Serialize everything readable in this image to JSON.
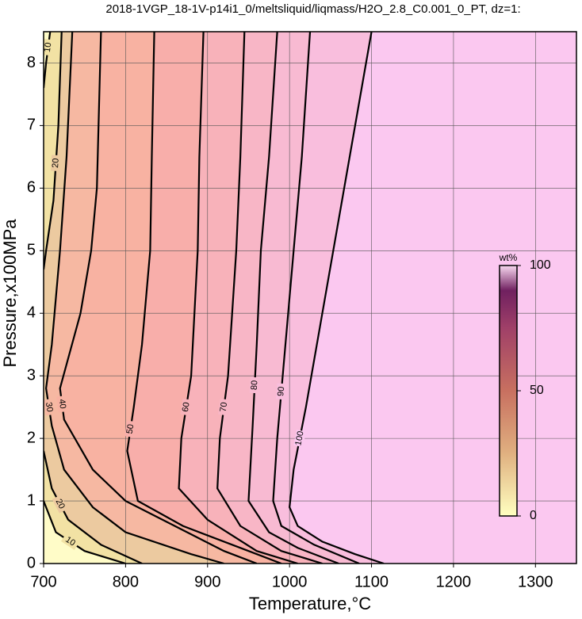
{
  "chart_data": {
    "type": "contour",
    "title": "2018-1VGP_18-1V-p14i1_0/meltsliquid/liqmass/H2O_2.8_C0.001_0_PT, dz=1:",
    "x_label": "Temperature,°C",
    "y_label": "Pressure,x100MPa",
    "xlim": [
      700,
      1350
    ],
    "ylim": [
      0,
      8.5
    ],
    "xticks": [
      700,
      800,
      900,
      1000,
      1100,
      1200,
      1300
    ],
    "yticks": [
      0,
      1,
      2,
      3,
      4,
      5,
      6,
      7,
      8
    ],
    "grid": true,
    "background": "#fffcc8",
    "series": [
      {
        "name": "10",
        "color": "#f2e2a4",
        "x": [
          708,
          703,
          700,
          null,
          700,
          715,
          750,
          800
        ],
        "y": [
          8.5,
          8,
          7.6,
          null,
          1.0,
          0.5,
          0.2,
          0
        ]
      },
      {
        "name": "20",
        "color": "#eccaa0",
        "x": [
          722,
          718,
          712,
          703,
          700,
          null,
          700,
          710,
          730,
          770,
          820
        ],
        "y": [
          8.5,
          7,
          5.8,
          5,
          4.7,
          null,
          1.8,
          1.2,
          0.7,
          0.3,
          0
        ]
      },
      {
        "name": "30",
        "color": "#f6b8a2",
        "x": [
          735,
          728,
          720,
          710,
          703,
          710,
          725,
          760,
          800,
          880,
          920
        ],
        "y": [
          8.5,
          6.5,
          5,
          3.5,
          2.8,
          2.2,
          1.5,
          0.9,
          0.5,
          0.15,
          0
        ]
      },
      {
        "name": "40",
        "color": "#f8b2a2",
        "x": [
          770,
          765,
          758,
          745,
          720,
          725,
          760,
          800,
          860,
          920,
          960
        ],
        "y": [
          8.5,
          6,
          5,
          4,
          2.8,
          2.3,
          1.5,
          1.0,
          0.6,
          0.2,
          0
        ]
      },
      {
        "name": "50",
        "color": "#f8aeaa",
        "x": [
          835,
          832,
          830,
          820,
          810,
          802,
          815,
          870,
          950,
          990
        ],
        "y": [
          8.5,
          6.5,
          5,
          3.5,
          2.5,
          1.8,
          1.0,
          0.6,
          0.2,
          0
        ]
      },
      {
        "name": "60",
        "color": "#f8b2ba",
        "x": [
          895,
          890,
          888,
          880,
          868,
          865,
          900,
          960,
          1010
        ],
        "y": [
          8.5,
          6.5,
          5,
          3,
          2,
          1.2,
          0.7,
          0.2,
          0
        ]
      },
      {
        "name": "70",
        "color": "#f8b6c6",
        "x": [
          945,
          940,
          935,
          925,
          915,
          912,
          940,
          990,
          1040
        ],
        "y": [
          8.5,
          6.5,
          5,
          3,
          2,
          1.2,
          0.6,
          0.2,
          0
        ]
      },
      {
        "name": "80",
        "color": "#f8bad2",
        "x": [
          985,
          975,
          965,
          960,
          955,
          950,
          975,
          1010,
          1060
        ],
        "y": [
          8.5,
          6.5,
          5,
          3.5,
          2.2,
          1.0,
          0.5,
          0.25,
          0
        ]
      },
      {
        "name": "90",
        "color": "#f9bedd",
        "x": [
          1025,
          1015,
          1005,
          995,
          985,
          980,
          990,
          1030,
          1085
        ],
        "y": [
          8.5,
          6.5,
          5,
          3.5,
          2,
          1,
          0.6,
          0.3,
          0
        ]
      },
      {
        "name": "100",
        "color": "#fbc8f0",
        "x": [
          1100,
          1080,
          1060,
          1040,
          1020,
          1005,
          1000,
          1010,
          1040,
          1080,
          1115
        ],
        "y": [
          8.5,
          7,
          5.5,
          4,
          2.5,
          1.5,
          0.9,
          0.6,
          0.35,
          0.15,
          0
        ]
      }
    ],
    "colorbar": {
      "label": "wt%",
      "lim": [
        0,
        100
      ],
      "ticks": [
        0,
        50,
        100
      ],
      "stops": [
        {
          "value": 0,
          "color": "#ffffc0"
        },
        {
          "value": 25,
          "color": "#e0b080"
        },
        {
          "value": 50,
          "color": "#c87060"
        },
        {
          "value": 75,
          "color": "#a04068"
        },
        {
          "value": 90,
          "color": "#702060"
        },
        {
          "value": 100,
          "color": "#f8d8f0"
        }
      ]
    }
  }
}
